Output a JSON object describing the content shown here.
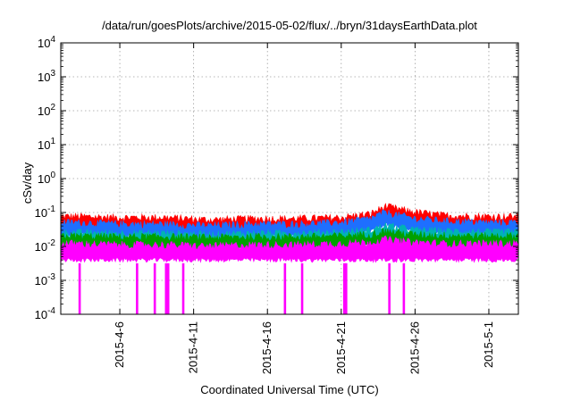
{
  "chart_data": {
    "type": "line",
    "title": "/data/run/goesPlots/archive/2015-05-02/flux/../bryn/31daysEarthData.plot",
    "xlabel": "Coordinated Universal Time (UTC)",
    "ylabel": "cSv/day",
    "scale_y": "log",
    "grid": true,
    "legend": "none",
    "xlim": [
      "2015-04-02",
      "2015-05-03"
    ],
    "ylim": [
      0.0001,
      10000
    ],
    "x_ticks": [
      "2015-4-6",
      "2015-4-11",
      "2015-4-16",
      "2015-4-21",
      "2015-4-26",
      "2015-5-1"
    ],
    "y_ticks": [
      {
        "value": 0.0001,
        "base": "10",
        "exp": "-4"
      },
      {
        "value": 0.001,
        "base": "10",
        "exp": "-3"
      },
      {
        "value": 0.01,
        "base": "10",
        "exp": "-2"
      },
      {
        "value": 0.1,
        "base": "10",
        "exp": "-1"
      },
      {
        "value": 1,
        "base": "10",
        "exp": "0"
      },
      {
        "value": 10,
        "base": "10",
        "exp": "1"
      },
      {
        "value": 100,
        "base": "10",
        "exp": "2"
      },
      {
        "value": 1000,
        "base": "10",
        "exp": "3"
      },
      {
        "value": 10000,
        "base": "10",
        "exp": "4"
      }
    ],
    "series": [
      {
        "color": "#ff0000",
        "x": [
          "2015-04-03",
          "2015-04-06",
          "2015-04-09",
          "2015-04-12",
          "2015-04-15",
          "2015-04-18",
          "2015-04-21",
          "2015-04-23",
          "2015-04-24",
          "2015-04-25",
          "2015-04-26",
          "2015-04-28",
          "2015-05-01",
          "2015-05-02"
        ],
        "values": [
          0.075,
          0.07,
          0.07,
          0.06,
          0.065,
          0.065,
          0.07,
          0.09,
          0.15,
          0.12,
          0.1,
          0.08,
          0.075,
          0.075
        ]
      },
      {
        "color": "#1e6fff",
        "x": [
          "2015-04-03",
          "2015-04-06",
          "2015-04-09",
          "2015-04-12",
          "2015-04-15",
          "2015-04-18",
          "2015-04-21",
          "2015-04-23",
          "2015-04-24",
          "2015-04-25",
          "2015-04-26",
          "2015-04-28",
          "2015-05-01",
          "2015-05-02"
        ],
        "values": [
          0.05,
          0.045,
          0.045,
          0.04,
          0.045,
          0.045,
          0.05,
          0.065,
          0.1,
          0.08,
          0.065,
          0.055,
          0.05,
          0.05
        ]
      },
      {
        "color": "#00b4b4",
        "x": [
          "2015-04-03",
          "2015-04-06",
          "2015-04-09",
          "2015-04-12",
          "2015-04-15",
          "2015-04-18",
          "2015-04-21",
          "2015-04-23",
          "2015-04-24",
          "2015-04-25",
          "2015-04-26",
          "2015-04-28",
          "2015-05-01",
          "2015-05-02"
        ],
        "values": [
          0.025,
          0.024,
          0.024,
          0.022,
          0.024,
          0.024,
          0.026,
          0.03,
          0.04,
          0.035,
          0.03,
          0.028,
          0.026,
          0.026
        ]
      },
      {
        "color": "#00a000",
        "x": [
          "2015-04-03",
          "2015-04-06",
          "2015-04-09",
          "2015-04-12",
          "2015-04-15",
          "2015-04-18",
          "2015-04-21",
          "2015-04-23",
          "2015-04-24",
          "2015-04-25",
          "2015-04-26",
          "2015-04-28",
          "2015-05-01",
          "2015-05-02"
        ],
        "values": [
          0.02,
          0.019,
          0.019,
          0.018,
          0.019,
          0.019,
          0.02,
          0.023,
          0.028,
          0.025,
          0.022,
          0.021,
          0.02,
          0.02
        ]
      },
      {
        "color": "#ff00ff",
        "x": [
          "2015-04-03",
          "2015-04-06",
          "2015-04-09",
          "2015-04-12",
          "2015-04-15",
          "2015-04-18",
          "2015-04-21",
          "2015-04-23",
          "2015-04-24",
          "2015-04-25",
          "2015-04-26",
          "2015-04-28",
          "2015-05-01",
          "2015-05-02"
        ],
        "values": [
          0.012,
          0.011,
          0.011,
          0.01,
          0.011,
          0.011,
          0.012,
          0.013,
          0.016,
          0.014,
          0.013,
          0.012,
          0.012,
          0.012
        ],
        "floor_values": [
          0.004,
          0.004,
          0.004,
          0.004,
          0.004,
          0.004,
          0.004,
          0.004,
          0.004,
          0.004,
          0.004,
          0.004,
          0.004,
          0.004
        ],
        "dropouts": [
          "2015-04-03",
          "2015-04-07",
          "2015-04-08",
          "2015-04-09",
          "2015-04-09",
          "2015-04-10",
          "2015-04-17",
          "2015-04-18",
          "2015-04-21",
          "2015-04-21",
          "2015-04-24",
          "2015-04-25"
        ],
        "dropout_min": 0.0001
      }
    ]
  }
}
